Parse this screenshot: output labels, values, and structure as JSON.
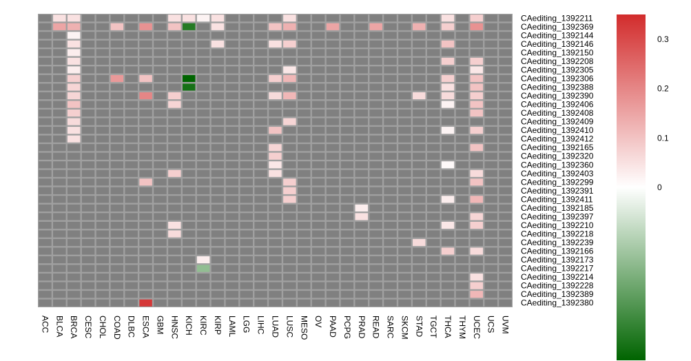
{
  "chart_data": {
    "type": "heatmap",
    "title": "",
    "xlabel": "",
    "ylabel": "",
    "columns": [
      "ACC",
      "BLCA",
      "BRCA",
      "CESC",
      "CHOL",
      "COAD",
      "DLBC",
      "ESCA",
      "GBM",
      "HNSC",
      "KICH",
      "KIRC",
      "KIRP",
      "LAML",
      "LGG",
      "LIHC",
      "LUAD",
      "LUSC",
      "MESO",
      "OV",
      "PAAD",
      "PCPG",
      "PRAD",
      "READ",
      "SARC",
      "SKCM",
      "STAD",
      "TGCT",
      "THCA",
      "THYM",
      "UCEC",
      "UCS",
      "UVM"
    ],
    "rows": [
      "CAediting_1392211",
      "CAediting_1392369",
      "CAediting_1392144",
      "CAediting_1392146",
      "CAediting_1392150",
      "CAediting_1392208",
      "CAediting_1392305",
      "CAediting_1392306",
      "CAediting_1392388",
      "CAediting_1392390",
      "CAediting_1392406",
      "CAediting_1392408",
      "CAediting_1392409",
      "CAediting_1392410",
      "CAediting_1392412",
      "CAediting_1392165",
      "CAediting_1392320",
      "CAediting_1392360",
      "CAediting_1392403",
      "CAediting_1392299",
      "CAediting_1392391",
      "CAediting_1392411",
      "CAediting_1392185",
      "CAediting_1392397",
      "CAediting_1392210",
      "CAediting_1392218",
      "CAediting_1392239",
      "CAediting_1392166",
      "CAediting_1392173",
      "CAediting_1392217",
      "CAediting_1392214",
      "CAediting_1392228",
      "CAediting_1392389",
      "CAediting_1392380"
    ],
    "values": [
      [
        null,
        0.05,
        0.05,
        null,
        null,
        null,
        null,
        null,
        null,
        0.05,
        0.05,
        0.02,
        0.05,
        null,
        null,
        null,
        null,
        0.05,
        null,
        null,
        null,
        null,
        null,
        null,
        null,
        null,
        null,
        null,
        0.05,
        null,
        0.08,
        null,
        null
      ],
      [
        null,
        0.15,
        0.13,
        null,
        null,
        0.1,
        null,
        0.18,
        null,
        0.1,
        -0.3,
        null,
        0.05,
        null,
        null,
        null,
        0.1,
        0.13,
        null,
        null,
        0.15,
        null,
        null,
        0.15,
        null,
        null,
        0.13,
        null,
        0.08,
        null,
        0.18,
        null,
        null
      ],
      [
        null,
        null,
        0.02,
        null,
        null,
        null,
        null,
        null,
        null,
        null,
        null,
        null,
        null,
        null,
        null,
        null,
        null,
        null,
        null,
        null,
        null,
        null,
        null,
        null,
        null,
        null,
        null,
        null,
        null,
        null,
        null,
        null,
        null
      ],
      [
        null,
        null,
        0.05,
        null,
        null,
        null,
        null,
        null,
        null,
        null,
        null,
        null,
        0.05,
        null,
        null,
        null,
        0.05,
        0.08,
        null,
        null,
        null,
        null,
        null,
        null,
        null,
        null,
        null,
        null,
        0.1,
        null,
        null,
        null,
        null
      ],
      [
        null,
        null,
        0.03,
        null,
        null,
        null,
        null,
        null,
        null,
        null,
        null,
        null,
        null,
        null,
        null,
        null,
        null,
        null,
        null,
        null,
        null,
        null,
        null,
        null,
        null,
        null,
        null,
        null,
        null,
        null,
        null,
        null,
        null
      ],
      [
        null,
        null,
        0.05,
        null,
        null,
        null,
        null,
        null,
        null,
        null,
        null,
        null,
        null,
        null,
        null,
        null,
        null,
        null,
        null,
        null,
        null,
        null,
        null,
        null,
        null,
        null,
        null,
        null,
        0.08,
        null,
        0.08,
        null,
        null
      ],
      [
        null,
        null,
        0.03,
        null,
        null,
        null,
        null,
        null,
        null,
        null,
        null,
        null,
        null,
        null,
        null,
        null,
        null,
        0.04,
        null,
        null,
        null,
        null,
        null,
        null,
        null,
        null,
        null,
        null,
        null,
        null,
        0.04,
        null,
        null
      ],
      [
        null,
        null,
        0.08,
        null,
        null,
        0.17,
        null,
        0.1,
        null,
        null,
        -0.35,
        null,
        null,
        null,
        null,
        null,
        0.08,
        0.12,
        null,
        null,
        null,
        null,
        null,
        null,
        null,
        null,
        null,
        null,
        0.08,
        null,
        0.1,
        null,
        null
      ],
      [
        null,
        null,
        0.07,
        null,
        null,
        null,
        null,
        null,
        null,
        null,
        -0.32,
        null,
        null,
        null,
        null,
        null,
        null,
        null,
        null,
        null,
        null,
        null,
        null,
        null,
        null,
        null,
        null,
        null,
        0.05,
        null,
        0.1,
        null,
        null
      ],
      [
        null,
        null,
        0.07,
        null,
        null,
        null,
        null,
        0.2,
        null,
        0.08,
        null,
        null,
        null,
        null,
        null,
        null,
        0.06,
        0.12,
        null,
        null,
        null,
        null,
        null,
        null,
        null,
        null,
        0.06,
        null,
        0.06,
        null,
        0.08,
        null,
        null
      ],
      [
        null,
        null,
        0.1,
        null,
        null,
        null,
        null,
        null,
        null,
        0.07,
        null,
        null,
        null,
        null,
        null,
        null,
        null,
        null,
        null,
        null,
        null,
        null,
        null,
        null,
        null,
        null,
        null,
        null,
        0.02,
        null,
        0.1,
        null,
        null
      ],
      [
        null,
        null,
        0.08,
        null,
        null,
        null,
        null,
        null,
        null,
        null,
        null,
        null,
        null,
        null,
        null,
        null,
        null,
        null,
        null,
        null,
        null,
        null,
        null,
        null,
        null,
        null,
        null,
        null,
        null,
        null,
        0.1,
        null,
        null
      ],
      [
        null,
        null,
        0.06,
        null,
        null,
        null,
        null,
        null,
        null,
        null,
        null,
        null,
        null,
        null,
        null,
        null,
        null,
        0.07,
        null,
        null,
        null,
        null,
        null,
        null,
        null,
        null,
        null,
        null,
        null,
        null,
        null,
        null,
        null
      ],
      [
        null,
        null,
        0.05,
        null,
        null,
        null,
        null,
        null,
        null,
        null,
        null,
        null,
        null,
        null,
        null,
        null,
        0.1,
        null,
        null,
        null,
        null,
        null,
        null,
        null,
        null,
        null,
        null,
        null,
        0.02,
        null,
        0.08,
        null,
        null
      ],
      [
        null,
        null,
        0.05,
        null,
        null,
        null,
        null,
        null,
        null,
        null,
        null,
        null,
        null,
        null,
        null,
        null,
        null,
        null,
        null,
        null,
        null,
        null,
        null,
        null,
        null,
        null,
        null,
        null,
        null,
        null,
        null,
        null,
        null
      ],
      [
        null,
        null,
        null,
        null,
        null,
        null,
        null,
        null,
        null,
        null,
        null,
        null,
        null,
        null,
        null,
        null,
        0.07,
        null,
        null,
        null,
        null,
        null,
        null,
        null,
        null,
        null,
        null,
        null,
        null,
        null,
        0.1,
        null,
        null
      ],
      [
        null,
        null,
        null,
        null,
        null,
        null,
        null,
        null,
        null,
        null,
        null,
        null,
        null,
        null,
        null,
        null,
        0.08,
        null,
        null,
        null,
        null,
        null,
        null,
        null,
        null,
        null,
        null,
        null,
        null,
        null,
        null,
        null,
        null
      ],
      [
        null,
        null,
        null,
        null,
        null,
        null,
        null,
        null,
        null,
        null,
        null,
        null,
        null,
        null,
        null,
        null,
        0.04,
        null,
        null,
        null,
        null,
        null,
        null,
        null,
        null,
        null,
        null,
        null,
        0.01,
        null,
        null,
        null,
        null
      ],
      [
        null,
        null,
        null,
        null,
        null,
        null,
        null,
        null,
        null,
        0.08,
        null,
        null,
        null,
        null,
        null,
        null,
        0.05,
        null,
        null,
        null,
        null,
        null,
        null,
        null,
        null,
        null,
        null,
        null,
        null,
        null,
        0.06,
        null,
        null
      ],
      [
        null,
        null,
        null,
        null,
        null,
        null,
        null,
        0.1,
        null,
        null,
        null,
        null,
        null,
        null,
        null,
        null,
        null,
        0.08,
        null,
        null,
        null,
        null,
        null,
        null,
        null,
        null,
        null,
        null,
        null,
        null,
        0.1,
        null,
        null
      ],
      [
        null,
        null,
        null,
        null,
        null,
        null,
        null,
        null,
        null,
        null,
        null,
        null,
        null,
        null,
        null,
        null,
        null,
        0.08,
        null,
        null,
        null,
        null,
        null,
        null,
        null,
        null,
        null,
        null,
        null,
        null,
        null,
        null,
        null
      ],
      [
        null,
        null,
        null,
        null,
        null,
        null,
        null,
        null,
        null,
        null,
        null,
        null,
        null,
        null,
        null,
        null,
        null,
        0.08,
        null,
        null,
        null,
        null,
        null,
        null,
        null,
        null,
        null,
        null,
        0.03,
        null,
        0.12,
        null,
        null
      ],
      [
        null,
        null,
        null,
        null,
        null,
        null,
        null,
        null,
        null,
        null,
        null,
        null,
        null,
        null,
        null,
        null,
        null,
        null,
        null,
        null,
        null,
        null,
        0.03,
        null,
        null,
        null,
        null,
        null,
        null,
        null,
        null,
        null,
        null
      ],
      [
        null,
        null,
        null,
        null,
        null,
        null,
        null,
        null,
        null,
        null,
        null,
        null,
        null,
        null,
        null,
        null,
        null,
        null,
        null,
        null,
        null,
        null,
        0.05,
        null,
        null,
        null,
        null,
        null,
        null,
        null,
        0.07,
        null,
        null
      ],
      [
        null,
        null,
        null,
        null,
        null,
        null,
        null,
        null,
        null,
        0.05,
        null,
        null,
        null,
        null,
        null,
        null,
        null,
        null,
        null,
        null,
        null,
        null,
        null,
        null,
        null,
        null,
        null,
        null,
        0.04,
        null,
        0.08,
        null,
        null
      ],
      [
        null,
        null,
        null,
        null,
        null,
        null,
        null,
        null,
        null,
        0.06,
        null,
        null,
        null,
        null,
        null,
        null,
        null,
        null,
        null,
        null,
        null,
        null,
        null,
        null,
        null,
        null,
        null,
        null,
        null,
        null,
        null,
        null,
        null
      ],
      [
        null,
        null,
        null,
        null,
        null,
        null,
        null,
        null,
        null,
        null,
        null,
        null,
        null,
        null,
        null,
        null,
        null,
        null,
        null,
        null,
        null,
        null,
        null,
        null,
        null,
        null,
        0.06,
        null,
        null,
        null,
        null,
        null,
        null
      ],
      [
        null,
        null,
        null,
        null,
        null,
        null,
        null,
        null,
        null,
        null,
        null,
        null,
        null,
        null,
        null,
        null,
        null,
        null,
        null,
        null,
        null,
        null,
        null,
        null,
        null,
        null,
        null,
        null,
        0.08,
        null,
        0.06,
        null,
        null
      ],
      [
        null,
        null,
        null,
        null,
        null,
        null,
        null,
        null,
        null,
        null,
        null,
        0.03,
        null,
        null,
        null,
        null,
        null,
        null,
        null,
        null,
        null,
        null,
        null,
        null,
        null,
        null,
        null,
        null,
        null,
        null,
        null,
        null,
        null
      ],
      [
        null,
        null,
        null,
        null,
        null,
        null,
        null,
        null,
        null,
        null,
        null,
        -0.15,
        null,
        null,
        null,
        null,
        null,
        null,
        null,
        null,
        null,
        null,
        null,
        null,
        null,
        null,
        null,
        null,
        null,
        null,
        null,
        null,
        null
      ],
      [
        null,
        null,
        null,
        null,
        null,
        null,
        null,
        null,
        null,
        null,
        null,
        null,
        null,
        null,
        null,
        null,
        null,
        null,
        null,
        null,
        null,
        null,
        null,
        null,
        null,
        null,
        null,
        null,
        null,
        null,
        0.05,
        null,
        null
      ],
      [
        null,
        null,
        null,
        null,
        null,
        null,
        null,
        null,
        null,
        null,
        null,
        null,
        null,
        null,
        null,
        null,
        null,
        null,
        null,
        null,
        null,
        null,
        null,
        null,
        null,
        null,
        null,
        null,
        null,
        null,
        0.08,
        null,
        null
      ],
      [
        null,
        null,
        null,
        null,
        null,
        null,
        null,
        null,
        null,
        null,
        null,
        null,
        null,
        null,
        null,
        null,
        null,
        null,
        null,
        null,
        null,
        null,
        null,
        null,
        null,
        null,
        null,
        null,
        null,
        null,
        0.12,
        null,
        null
      ],
      [
        null,
        null,
        null,
        null,
        null,
        null,
        null,
        null,
        null,
        null,
        null,
        null,
        null,
        null,
        null,
        null,
        null,
        null,
        null,
        null,
        null,
        null,
        null,
        null,
        null,
        null,
        null,
        null,
        null,
        null,
        null,
        null,
        null
      ]
    ],
    "override": {
      "33": {
        "7": 0.33
      }
    },
    "colorscale": {
      "min": -0.35,
      "max": 0.35,
      "low_color": "#006400",
      "mid_color": "#ffffff",
      "high_color": "#d22c2c",
      "missing_color": "#808080",
      "grid_color": "#a0a0a0",
      "ticks": [
        0,
        0.1,
        0.2,
        0.3
      ],
      "tick_labels": [
        "0",
        "0.1",
        "0.2",
        "0.3"
      ]
    }
  }
}
